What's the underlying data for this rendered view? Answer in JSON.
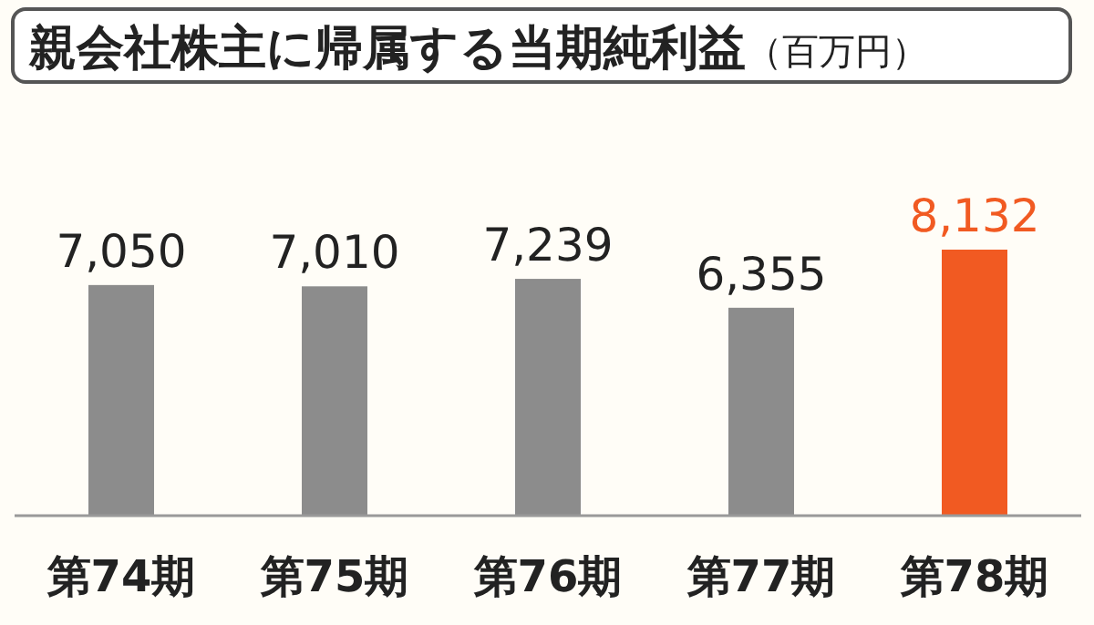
{
  "chart_data": {
    "type": "bar",
    "title": "親会社株主に帰属する当期純利益",
    "subtitle": "（百万円）",
    "categories": [
      "第74期",
      "第75期",
      "第76期",
      "第77期",
      "第78期"
    ],
    "values": [
      7050,
      7010,
      7239,
      6355,
      8132
    ],
    "colors": [
      "#8c8c8c",
      "#8c8c8c",
      "#8c8c8c",
      "#8c8c8c",
      "#f15a22"
    ],
    "value_labels": [
      "7,050",
      "7,010",
      "7,239",
      "6,355",
      "8,132"
    ]
  }
}
